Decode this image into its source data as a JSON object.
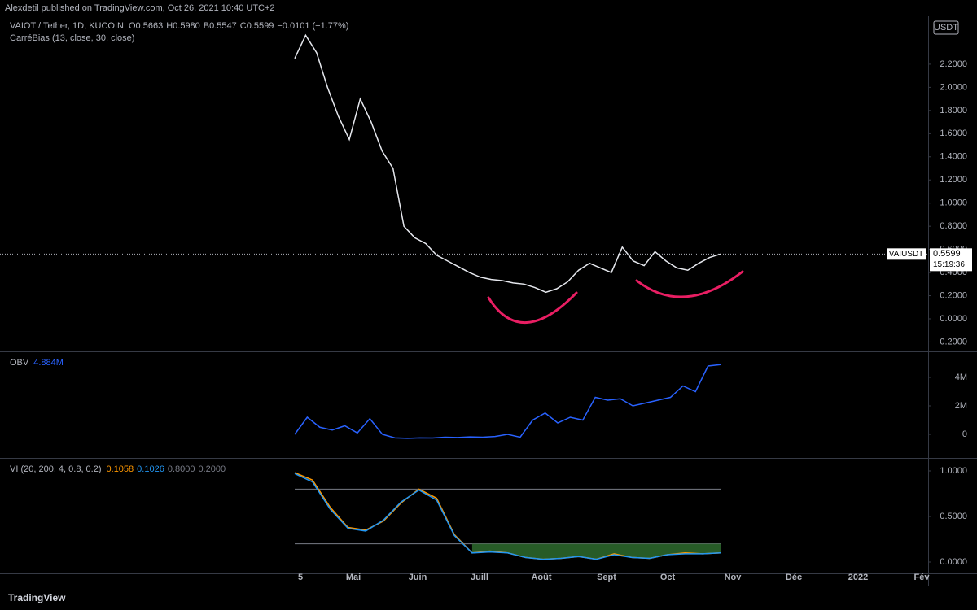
{
  "header": {
    "publisher": "Alexdetil published on TradingView.com, Oct 26, 2021 10:40 UTC+2",
    "brand": "TradingView"
  },
  "time_axis": [
    "5",
    "Mai",
    "Juin",
    "Juill",
    "Août",
    "Sept",
    "Oct",
    "Nov",
    "Déc",
    "2022",
    "Fév"
  ],
  "chart_data": [
    {
      "type": "line",
      "title": "VAIOT / Tether, 1D, KUCOIN",
      "legend_values": [
        "O0.5663",
        "H0.5980",
        "B0.5547",
        "C0.5599",
        "−0.0101 (−1.77%)"
      ],
      "indicator": "CarréBias (13, close, 30, close)",
      "currency": "USDT",
      "symbol": "VAIUSDT",
      "last_price": 0.5599,
      "countdown": "15:19:36",
      "ylim": [
        -0.281,
        2.614
      ],
      "yticks": [
        {
          "value": 2.2,
          "label": "2.2000"
        },
        {
          "value": 2.0,
          "label": "2.0000"
        },
        {
          "value": 1.8,
          "label": "1.8000"
        },
        {
          "value": 1.6,
          "label": "1.6000"
        },
        {
          "value": 1.4,
          "label": "1.4000"
        },
        {
          "value": 1.2,
          "label": "1.2000"
        },
        {
          "value": 1.0,
          "label": "1.0000"
        },
        {
          "value": 0.8,
          "label": "0.8000"
        },
        {
          "value": 0.6,
          "label": "0.6000"
        },
        {
          "value": 0.4,
          "label": "0.4000"
        },
        {
          "value": 0.2,
          "label": "0.2000"
        },
        {
          "value": 0,
          "label": "0.0000"
        },
        {
          "value": -0.2,
          "label": "-0.2000"
        }
      ],
      "series": [
        {
          "color": "#e6e8ee",
          "values": [
            2.25,
            2.45,
            2.3,
            2.0,
            1.75,
            1.55,
            1.9,
            1.7,
            1.45,
            1.3,
            0.8,
            0.7,
            0.65,
            0.55,
            0.5,
            0.45,
            0.4,
            0.36,
            0.34,
            0.33,
            0.31,
            0.3,
            0.27,
            0.23,
            0.26,
            0.32,
            0.42,
            0.48,
            0.44,
            0.4,
            0.62,
            0.5,
            0.46,
            0.58,
            0.5,
            0.44,
            0.42,
            0.48,
            0.53,
            0.56
          ]
        }
      ]
    },
    {
      "type": "line",
      "title": "OBV",
      "last_value": {
        "value": 4884000,
        "label": "4.884M"
      },
      "ylim": [
        -1600000,
        5714286
      ],
      "yticks": [
        {
          "value": 4000000,
          "label": "4M"
        },
        {
          "value": 2000000,
          "label": "2M"
        },
        0
      ],
      "series": [
        {
          "color": "#2962ff",
          "values": [
            0,
            1200000,
            500000,
            300000,
            600000,
            100000,
            1100000,
            0,
            -250000,
            -280000,
            -250000,
            -260000,
            -200000,
            -220000,
            -180000,
            -200000,
            -150000,
            0,
            -200000,
            1000000,
            1500000,
            800000,
            1200000,
            1000000,
            2600000,
            2400000,
            2500000,
            2000000,
            2200000,
            2400000,
            2600000,
            3400000,
            3000000,
            4800000,
            4900000
          ]
        }
      ]
    },
    {
      "type": "line",
      "title": "VI (20, 200, 4, 0.8, 0.2)",
      "last_values": [
        0.1058,
        0.1026
      ],
      "levels": [
        {
          "value": 0.8,
          "label": "0.8000"
        },
        {
          "value": 0.2,
          "label": "0.2000"
        }
      ],
      "ylim": [
        -0.125,
        1.125
      ],
      "yticks": [
        {
          "value": 1,
          "label": "1.0000"
        },
        {
          "value": 0.5,
          "label": "0.5000"
        },
        {
          "value": 0,
          "label": "0.0000"
        }
      ],
      "series": [
        {
          "color": "#ff9800",
          "values": [
            0.98,
            0.9,
            0.6,
            0.38,
            0.35,
            0.45,
            0.65,
            0.8,
            0.7,
            0.3,
            0.1,
            0.12,
            0.1,
            0.05,
            0.03,
            0.04,
            0.06,
            0.03,
            0.09,
            0.05,
            0.04,
            0.08,
            0.1,
            0.09,
            0.1
          ]
        },
        {
          "color": "#2196f3",
          "values": [
            0.97,
            0.88,
            0.58,
            0.37,
            0.34,
            0.46,
            0.66,
            0.79,
            0.68,
            0.29,
            0.1,
            0.11,
            0.1,
            0.05,
            0.03,
            0.04,
            0.06,
            0.03,
            0.08,
            0.05,
            0.04,
            0.08,
            0.09,
            0.09,
            0.1
          ]
        }
      ]
    }
  ]
}
